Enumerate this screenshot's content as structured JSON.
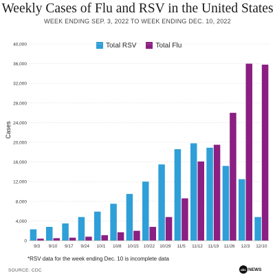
{
  "title": "Weekly Cases of Flu and RSV in the United States",
  "subtitle": "WEEK ENDING SEP. 3, 2022 TO WEEK ENDING DEC. 10, 2022",
  "note": "*RSV data for the week ending Dec. 10 is incomplete data",
  "source": "SOURCE: CDC",
  "logo": {
    "mark": "abc",
    "text": "NEWS"
  },
  "chart_data": {
    "type": "bar",
    "ylabel": "Cases",
    "xlabel": "",
    "ylim": [
      0,
      40000
    ],
    "yticks": [
      "0",
      "4,000",
      "8,000",
      "12,000",
      "16,000",
      "20,000",
      "24,000",
      "28,000",
      "32,000",
      "36,000",
      "40,000"
    ],
    "categories": [
      "9/3",
      "9/10",
      "9/17",
      "9/24",
      "10/1",
      "10/8",
      "10/15",
      "10/22",
      "10/29",
      "11/5",
      "11/12",
      "11/19",
      "11/26",
      "12/3",
      "12/10"
    ],
    "series": [
      {
        "name": "Total RSV",
        "color": "#2f9fd8",
        "values": [
          2300,
          2800,
          3500,
          4800,
          5900,
          7500,
          9500,
          12000,
          15500,
          18600,
          19800,
          18900,
          15200,
          12500,
          4800
        ]
      },
      {
        "name": "Total Flu",
        "color": "#8b1f82",
        "values": [
          400,
          500,
          600,
          800,
          1100,
          1700,
          2000,
          2800,
          4800,
          8600,
          16100,
          19500,
          26000,
          36000,
          35800
        ]
      }
    ],
    "grid": true,
    "legend": "top"
  }
}
